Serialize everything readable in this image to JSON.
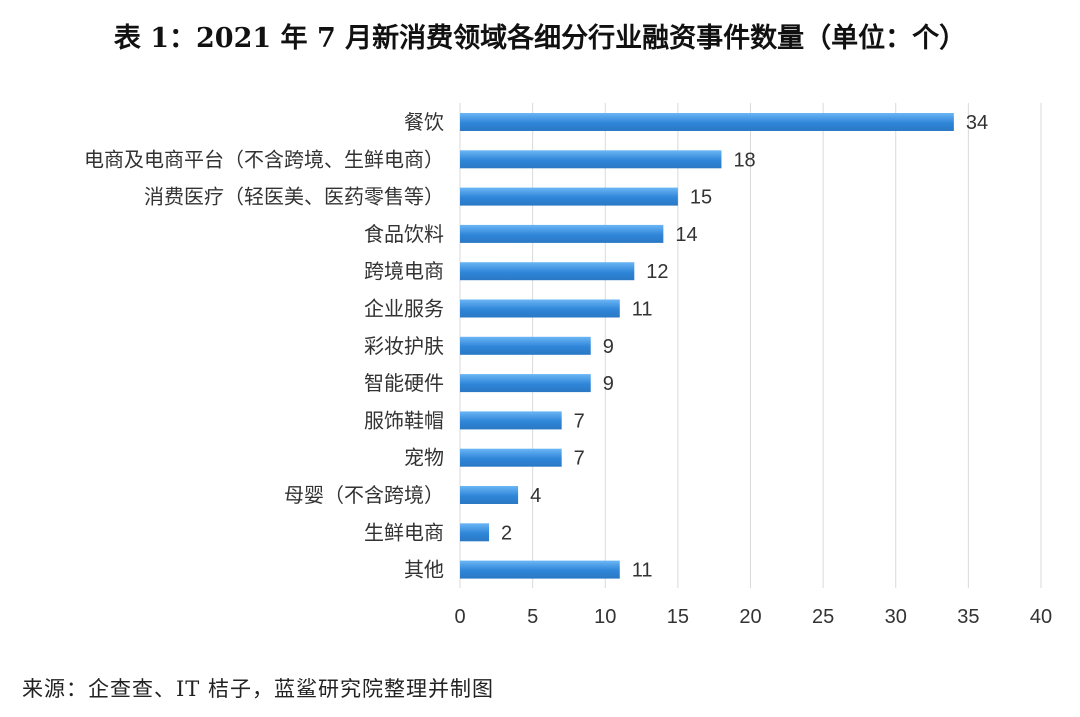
{
  "title": "表 1：2021 年 7 月新消费领域各细分行业融资事件数量（单位：个）",
  "source": "来源：企查查、IT 桔子，蓝鲨研究院整理并制图",
  "colors": {
    "bar": "#2f86d8",
    "bar_light": "#5aaaf0",
    "grid": "#d9d9d9",
    "text": "#333333"
  },
  "chart_data": {
    "type": "bar",
    "orientation": "horizontal",
    "title": "表 1：2021 年 7 月新消费领域各细分行业融资事件数量（单位：个）",
    "xlabel": "",
    "ylabel": "",
    "xlim": [
      0,
      40
    ],
    "x_ticks": [
      0,
      5,
      10,
      15,
      20,
      25,
      30,
      35,
      40
    ],
    "grid": "vertical",
    "legend": "none",
    "categories": [
      "餐饮",
      "电商及电商平台（不含跨境、生鲜电商）",
      "消费医疗（轻医美、医药零售等）",
      "食品饮料",
      "跨境电商",
      "企业服务",
      "彩妆护肤",
      "智能硬件",
      "服饰鞋帽",
      "宠物",
      "母婴（不含跨境）",
      "生鲜电商",
      "其他"
    ],
    "values": [
      34,
      18,
      15,
      14,
      12,
      11,
      9,
      9,
      7,
      7,
      4,
      2,
      11
    ]
  }
}
